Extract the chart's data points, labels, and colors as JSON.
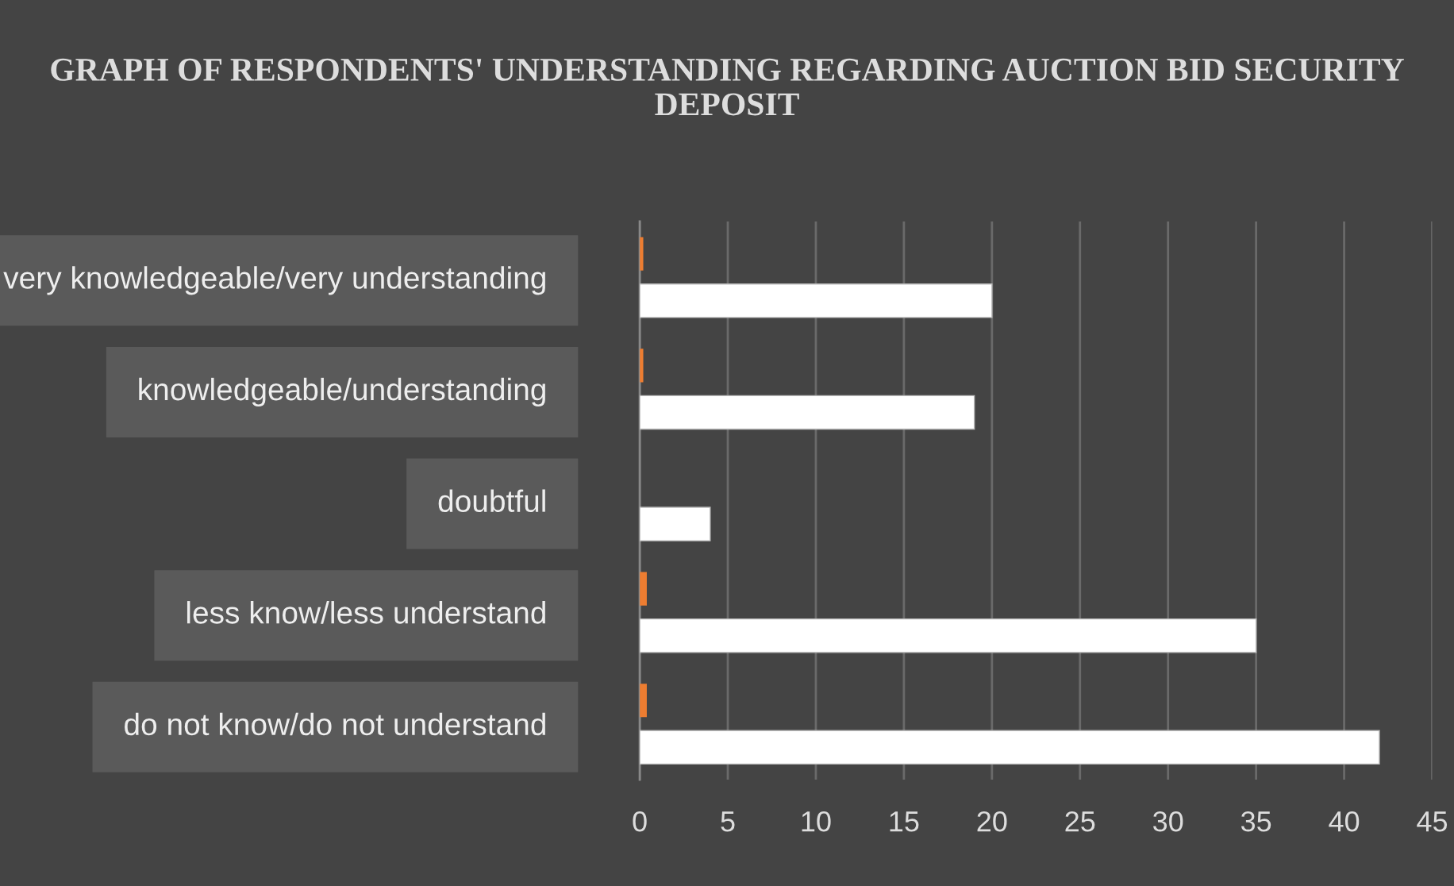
{
  "chart_data": {
    "type": "bar",
    "orientation": "horizontal",
    "title": "GRAPH OF RESPONDENTS' UNDERSTANDING REGARDING AUCTION BID SECURITY DEPOSIT",
    "categories": [
      "very knowledgeable/very understanding",
      "knowledgeable/understanding",
      "doubtful",
      "less know/less understand",
      "do not know/do not understand"
    ],
    "series": [
      {
        "color": "#ed7d31",
        "values": [
          0.2,
          0.2,
          0.0,
          0.4,
          0.4
        ]
      },
      {
        "color": "#ffffff",
        "values": [
          20,
          19,
          4,
          35,
          42
        ]
      }
    ],
    "xlim": [
      0,
      45
    ],
    "xticks": [
      0,
      5,
      10,
      15,
      20,
      25,
      30,
      35,
      40,
      45
    ],
    "grid": "x",
    "legend": false
  }
}
